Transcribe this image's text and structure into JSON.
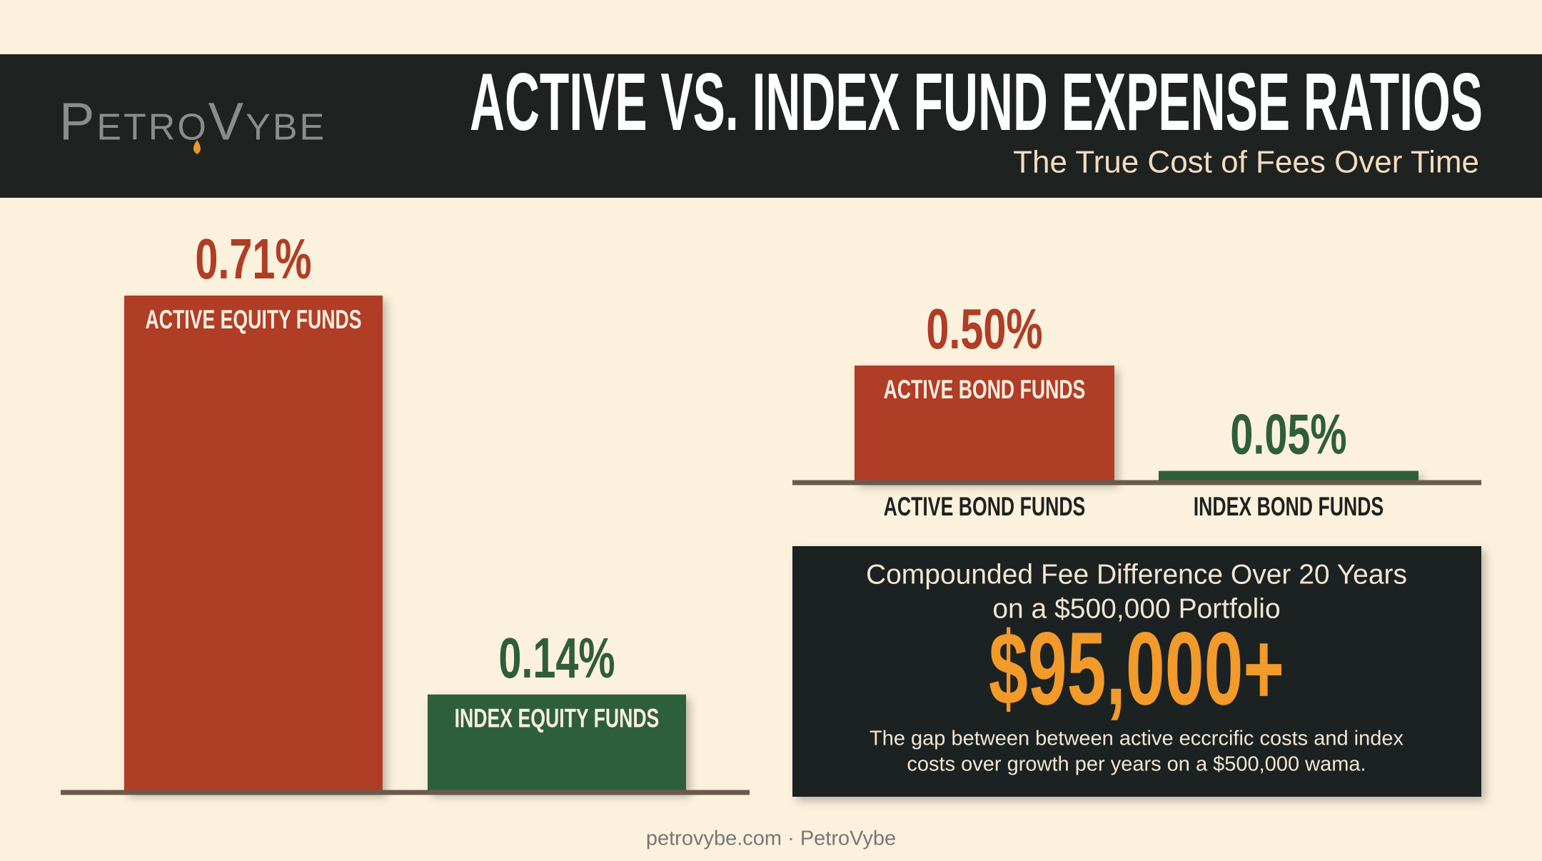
{
  "header": {
    "logo": "PetroVybe",
    "title": "ACTIVE VS. INDEX FUND EXPENSE RATIOS",
    "subtitle": "The True Cost of Fees Over Time"
  },
  "chart_data": [
    {
      "type": "bar",
      "categories": [
        "ACTIVE EQUITY FUNDS",
        "INDEX EQUITY FUNDS"
      ],
      "values": [
        0.71,
        0.14
      ],
      "value_labels": [
        "0.71%",
        "0.14%"
      ],
      "colors": [
        "#b03d26",
        "#2f5e3a"
      ]
    },
    {
      "type": "bar",
      "categories": [
        "ACTIVE BOND FUNDS",
        "INDEX BOND FUNDS"
      ],
      "values": [
        0.5,
        0.05
      ],
      "value_labels": [
        "0.50%",
        "0.05%"
      ],
      "colors": [
        "#b03d26",
        "#2f5e3a"
      ]
    }
  ],
  "callout": {
    "heading_lines": [
      "Compounded Fee Difference Over 20 Years",
      "on a $500,000 Portfolio"
    ],
    "amount": "$95,000+",
    "note_lines": [
      "The gap between between active eccrcific costs and index",
      "costs over  growth per years  on a $500,000 wama."
    ]
  },
  "footer": "petrovybe.com · PetroVybe"
}
